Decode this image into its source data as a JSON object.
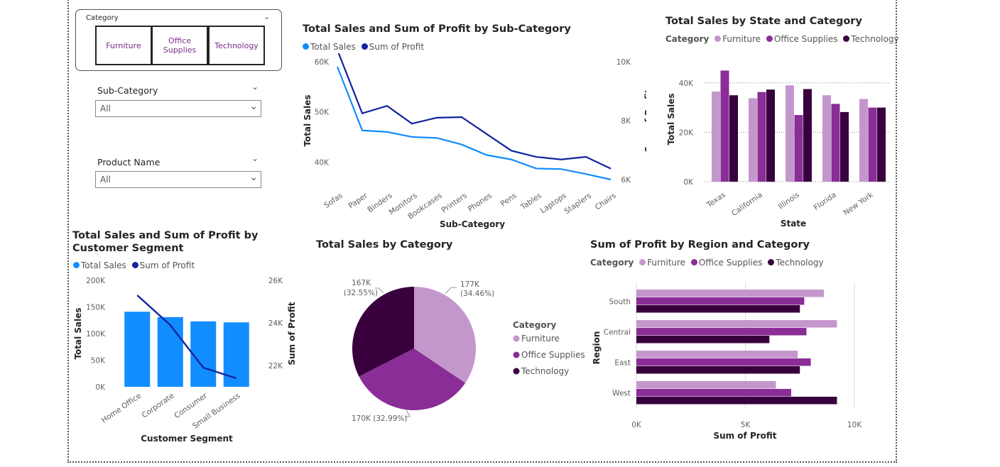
{
  "colors": {
    "blue": "#118dff",
    "navy": "#12239e",
    "furniture": "#c497cc",
    "office": "#8b2d97",
    "technology": "#38003c",
    "grid": "#c8c8c8",
    "axis": "#605e5c"
  },
  "slicers": {
    "category": {
      "header": "Category",
      "tiles": [
        "Furniture",
        "Office Supplies",
        "Technology"
      ]
    },
    "subcategory": {
      "label": "Sub-Category",
      "value": "All"
    },
    "product": {
      "label": "Product Name",
      "value": "All"
    }
  },
  "chart_data": [
    {
      "id": "subcat",
      "type": "line",
      "title": "Total Sales and Sum of Profit by Sub-Category",
      "xlabel": "Sub-Category",
      "ylabel": "Total Sales",
      "y2label": "Sum of Profit",
      "categories": [
        "Sofas",
        "Paper",
        "Binders",
        "Monitors",
        "Bookcases",
        "Printers",
        "Phones",
        "Pens",
        "Tables",
        "Laptops",
        "Staplers",
        "Chairs"
      ],
      "series": [
        {
          "name": "Total Sales",
          "axis": "left",
          "values": [
            59000,
            46300,
            46000,
            45000,
            44800,
            43500,
            41400,
            40500,
            38700,
            38600,
            37600,
            36500
          ]
        },
        {
          "name": "Sum of Profit",
          "axis": "right",
          "values": [
            10400,
            8250,
            8500,
            7900,
            8100,
            8120,
            7550,
            6980,
            6770,
            6680,
            6770,
            6370
          ]
        }
      ],
      "yticks": [
        "60K",
        "50K",
        "40K"
      ],
      "y2ticks": [
        "10K",
        "8K",
        "6K"
      ],
      "ylim": [
        36500,
        60000
      ],
      "y2lim": [
        6000,
        10000
      ]
    },
    {
      "id": "state",
      "type": "bar",
      "title": "Total Sales by State and Category",
      "legend_title": "Category",
      "xlabel": "State",
      "ylabel": "Total Sales",
      "categories": [
        "Texas",
        "California",
        "Illinois",
        "Florida",
        "New York"
      ],
      "series": [
        {
          "name": "Furniture",
          "values": [
            36500,
            33800,
            39000,
            35000,
            33500
          ]
        },
        {
          "name": "Office Supplies",
          "values": [
            45000,
            36300,
            27000,
            31500,
            30000
          ]
        },
        {
          "name": "Technology",
          "values": [
            35000,
            37300,
            37500,
            28200,
            30000
          ]
        }
      ],
      "yticks": [
        "0K",
        "20K",
        "40K"
      ],
      "ylim": [
        0,
        50000
      ]
    },
    {
      "id": "segment",
      "type": "bar",
      "title": "Total Sales and Sum of Profit by Customer Segment",
      "xlabel": "Customer Segment",
      "ylabel": "Total Sales",
      "y2label": "Sum of Profit",
      "categories": [
        "Home Office",
        "Corporate",
        "Consumer",
        "Small Business"
      ],
      "series": [
        {
          "name": "Total Sales",
          "axis": "left",
          "type": "bar",
          "values": [
            141000,
            131000,
            123000,
            121000
          ]
        },
        {
          "name": "Sum of Profit",
          "axis": "right",
          "type": "line",
          "values": [
            25300,
            23900,
            21900,
            21400
          ]
        }
      ],
      "yticks": [
        "200K",
        "150K",
        "100K",
        "50K",
        "0K"
      ],
      "y2ticks": [
        "26K",
        "24K",
        "22K"
      ],
      "ylim": [
        0,
        200000
      ],
      "y2lim": [
        21000,
        26000
      ]
    },
    {
      "id": "pie",
      "type": "pie",
      "title": "Total Sales by Category",
      "legend_title": "Category",
      "labels": [
        "Furniture",
        "Office Supplies",
        "Technology"
      ],
      "values": [
        177000,
        170000,
        167000
      ],
      "data_labels": [
        [
          "177K",
          "(34.46%)"
        ],
        [
          "170K (32.99%)"
        ],
        [
          "167K",
          "(32.55%)"
        ]
      ]
    },
    {
      "id": "region",
      "type": "bar",
      "title": "Sum of Profit by Region and Category",
      "legend_title": "Category",
      "xlabel": "Sum of Profit",
      "ylabel": "Region",
      "categories": [
        "South",
        "Central",
        "East",
        "West"
      ],
      "series": [
        {
          "name": "Furniture",
          "values": [
            8600,
            9200,
            7400,
            6400
          ]
        },
        {
          "name": "Office Supplies",
          "values": [
            7700,
            7800,
            8000,
            7100
          ]
        },
        {
          "name": "Technology",
          "values": [
            7500,
            6100,
            7500,
            9200
          ]
        }
      ],
      "xticks": [
        "0K",
        "5K",
        "10K"
      ],
      "xlim": [
        0,
        10000
      ]
    }
  ]
}
